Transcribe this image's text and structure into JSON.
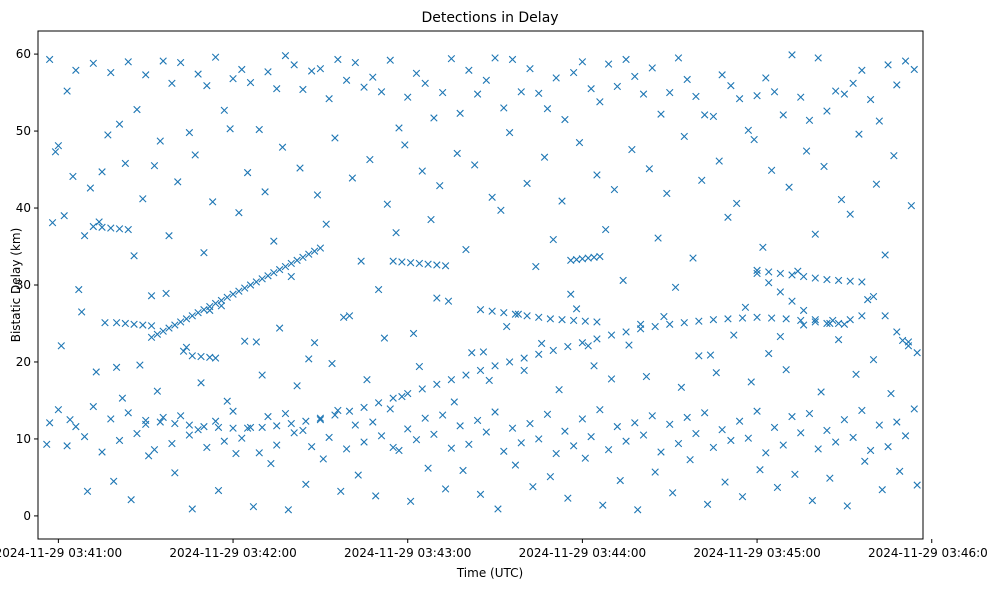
{
  "chart_data": {
    "type": "scatter",
    "title": "Detections in Delay",
    "xlabel": "Time (UTC)",
    "ylabel": "Bistatic Delay (km)",
    "x_unit": "seconds after 2024-11-29 03:40:00",
    "xlim": [
      53,
      357
    ],
    "ylim": [
      -3,
      63
    ],
    "x_ticks": [
      {
        "value": 60,
        "label": "2024-11-29 03:41:00"
      },
      {
        "value": 120,
        "label": "2024-11-29 03:42:00"
      },
      {
        "value": 180,
        "label": "2024-11-29 03:43:00"
      },
      {
        "value": 240,
        "label": "2024-11-29 03:44:00"
      },
      {
        "value": 300,
        "label": "2024-11-29 03:45:00"
      },
      {
        "value": 360,
        "label": "2024-11-29 03:46:00"
      }
    ],
    "y_ticks": [
      {
        "value": 0,
        "label": "0"
      },
      {
        "value": 10,
        "label": "10"
      },
      {
        "value": 20,
        "label": "20"
      },
      {
        "value": 30,
        "label": "30"
      },
      {
        "value": 40,
        "label": "40"
      },
      {
        "value": 50,
        "label": "50"
      },
      {
        "value": 60,
        "label": "60"
      }
    ],
    "marker": "x",
    "color": "#1f77b4",
    "series": [
      {
        "name": "detections",
        "x": [
          57,
          60,
          63,
          66,
          69,
          72,
          75,
          78,
          81,
          84,
          87,
          90,
          93,
          96,
          99,
          102,
          105,
          108,
          111,
          114,
          117,
          120,
          123,
          126,
          129,
          132,
          135,
          138,
          141,
          144,
          147,
          150,
          153,
          156,
          159,
          162,
          165,
          168,
          171,
          174,
          177,
          180,
          183,
          186,
          189,
          192,
          195,
          198,
          201,
          204,
          207,
          210,
          213,
          216,
          219,
          222,
          225,
          228,
          231,
          234,
          237,
          240,
          243,
          246,
          249,
          252,
          255,
          258,
          261,
          264,
          267,
          270,
          273,
          276,
          279,
          282,
          285,
          288,
          291,
          294,
          297,
          300,
          303,
          306,
          309,
          312,
          315,
          318,
          321,
          324,
          327,
          330,
          333,
          336,
          339,
          342,
          345,
          348,
          351,
          354,
          56,
          58,
          61,
          64,
          67,
          70,
          73,
          76,
          79,
          82,
          85,
          88,
          91,
          94,
          97,
          100,
          103,
          106,
          109,
          112,
          115,
          118,
          121,
          124,
          127,
          130,
          133,
          136,
          139,
          142,
          145,
          148,
          151,
          154,
          157,
          160,
          163,
          166,
          169,
          172,
          175,
          178,
          181,
          184,
          187,
          190,
          193,
          196,
          199,
          202,
          205,
          208,
          211,
          214,
          217,
          220,
          223,
          226,
          229,
          232,
          235,
          238,
          241,
          244,
          247,
          250,
          253,
          256,
          259,
          262,
          265,
          268,
          271,
          274,
          277,
          280,
          283,
          286,
          289,
          292,
          295,
          298,
          301,
          304,
          307,
          310,
          313,
          316,
          319,
          322,
          325,
          328,
          331,
          334,
          337,
          340,
          343,
          346,
          349,
          352,
          355,
          92,
          94,
          96,
          98,
          100,
          102,
          104,
          106,
          108,
          110,
          112,
          114,
          116,
          118,
          120,
          122,
          124,
          126,
          128,
          130,
          132,
          134,
          136,
          138,
          140,
          142,
          144,
          146,
          148,
          150,
          90,
          95,
          100,
          105,
          110,
          115,
          120,
          125,
          130,
          135,
          140,
          145,
          150,
          155,
          160,
          165,
          170,
          175,
          180,
          185,
          190,
          195,
          200,
          205,
          210,
          215,
          220,
          225,
          230,
          235,
          240,
          245,
          250,
          255,
          260,
          265,
          270,
          275,
          280,
          285,
          290,
          295,
          300,
          305,
          310,
          315,
          320,
          325,
          330,
          300,
          304,
          308,
          312,
          316,
          320,
          324,
          328,
          332,
          336,
          340,
          344,
          348,
          352,
          355,
          300,
          304,
          308,
          312,
          316,
          320,
          324,
          328,
          332,
          336,
          205,
          209,
          213,
          217,
          221,
          225,
          229,
          233,
          237,
          241,
          245,
          175,
          178,
          181,
          184,
          187,
          190,
          193,
          236,
          238,
          240,
          242,
          244,
          246,
          72,
          75,
          78,
          81,
          84,
          106,
          109,
          112,
          114,
          80,
          83,
          86,
          89,
          92,
          57,
          60,
          63,
          66,
          69,
          72,
          75,
          78,
          81,
          84,
          87,
          90,
          93,
          96,
          99,
          102,
          105,
          108,
          111,
          114,
          117,
          120,
          123,
          126,
          129,
          132,
          135,
          138,
          141,
          144,
          147,
          150,
          153,
          156,
          159,
          162,
          165,
          168,
          171,
          174,
          177,
          180,
          183,
          186,
          189,
          192,
          195,
          198,
          201,
          204,
          207,
          210,
          213,
          216,
          219,
          222,
          225,
          228,
          231,
          234,
          237,
          240,
          243,
          246,
          249,
          252,
          255,
          258,
          261,
          264,
          267,
          270,
          273,
          276,
          279,
          282,
          285,
          288,
          291,
          294,
          297,
          300,
          303,
          306,
          309,
          312,
          315,
          318,
          321,
          324,
          327,
          330,
          333,
          336,
          339,
          342,
          345,
          348,
          351,
          354,
          62,
          68,
          74,
          80,
          86,
          92,
          98,
          104,
          110,
          116,
          122,
          128,
          134,
          140,
          146,
          152,
          158,
          164,
          170,
          176,
          182,
          188,
          194,
          200,
          206,
          212,
          218,
          224,
          230,
          236,
          242,
          248,
          254,
          260,
          266,
          272,
          278,
          284,
          290,
          296,
          302,
          308,
          314,
          320,
          326,
          332,
          338,
          344,
          350,
          59,
          65,
          71,
          77,
          83,
          89,
          95,
          101,
          107,
          113,
          119,
          125,
          131,
          137,
          143,
          149,
          155,
          161,
          167,
          173,
          179,
          185,
          191,
          197,
          203,
          209,
          215,
          221,
          227,
          233,
          239,
          245,
          251,
          257,
          263,
          269,
          275,
          281,
          287,
          293,
          299,
          305,
          311,
          317,
          323,
          329,
          335,
          341,
          347,
          353
        ],
        "y": [
          59.3,
          48.1,
          55.2,
          57.9,
          36.4,
          58.8,
          44.7,
          57.6,
          50.9,
          59.0,
          52.8,
          57.3,
          45.5,
          59.1,
          56.2,
          58.9,
          49.8,
          57.4,
          55.9,
          59.6,
          52.7,
          56.8,
          58.0,
          56.3,
          50.2,
          57.7,
          55.5,
          59.8,
          58.6,
          55.4,
          57.8,
          58.1,
          54.2,
          59.3,
          56.6,
          58.9,
          55.7,
          57.0,
          55.1,
          59.2,
          50.4,
          54.4,
          57.5,
          56.2,
          51.7,
          55.0,
          59.4,
          52.3,
          57.9,
          54.8,
          56.6,
          59.5,
          53.0,
          59.3,
          55.1,
          58.1,
          54.9,
          52.9,
          56.9,
          51.5,
          57.6,
          59.0,
          55.5,
          53.8,
          58.7,
          55.8,
          59.3,
          57.1,
          54.8,
          58.2,
          52.2,
          55.0,
          59.5,
          56.7,
          54.5,
          52.1,
          51.9,
          57.3,
          55.9,
          54.2,
          50.1,
          54.6,
          56.9,
          55.1,
          52.1,
          59.9,
          54.4,
          51.4,
          59.5,
          52.6,
          55.2,
          54.8,
          56.2,
          57.9,
          54.1,
          51.3,
          58.6,
          56.0,
          59.1,
          58.0,
          9.3,
          38.1,
          22.1,
          12.5,
          29.4,
          3.2,
          18.7,
          25.1,
          4.5,
          15.3,
          2.1,
          19.6,
          7.8,
          16.2,
          28.9,
          5.6,
          21.4,
          0.9,
          17.3,
          26.7,
          3.3,
          14.9,
          8.1,
          22.7,
          1.2,
          18.3,
          6.8,
          24.4,
          0.8,
          16.9,
          4.1,
          22.5,
          7.4,
          19.8,
          3.2,
          26.0,
          5.3,
          17.7,
          2.6,
          23.1,
          8.9,
          15.5,
          1.9,
          19.4,
          6.2,
          28.3,
          3.5,
          14.8,
          5.9,
          21.2,
          2.8,
          17.6,
          0.9,
          24.6,
          6.6,
          18.9,
          3.8,
          22.4,
          5.1,
          16.4,
          2.3,
          26.9,
          7.5,
          19.5,
          1.4,
          17.8,
          4.6,
          22.2,
          0.8,
          18.1,
          5.7,
          25.9,
          3.0,
          16.7,
          7.3,
          20.8,
          1.5,
          18.6,
          4.4,
          23.5,
          2.5,
          17.4,
          6.0,
          21.1,
          3.7,
          19.0,
          5.4,
          24.8,
          2.0,
          16.1,
          4.9,
          22.9,
          1.3,
          18.4,
          7.1,
          20.3,
          3.4,
          15.9,
          5.8,
          22.6,
          4.0,
          23.2,
          23.6,
          24.0,
          24.4,
          24.8,
          25.2,
          25.6,
          26.0,
          26.4,
          26.8,
          27.2,
          27.6,
          28.0,
          28.4,
          28.8,
          29.2,
          29.6,
          30.0,
          30.4,
          30.8,
          31.2,
          31.6,
          32.0,
          32.4,
          32.8,
          33.2,
          33.6,
          34.0,
          34.4,
          34.8,
          12.4,
          12.2,
          12.0,
          11.8,
          11.6,
          11.5,
          11.4,
          11.4,
          11.5,
          11.7,
          12.0,
          12.3,
          12.7,
          13.1,
          13.6,
          14.1,
          14.7,
          15.3,
          15.9,
          16.5,
          17.1,
          17.7,
          18.3,
          18.9,
          19.5,
          20.0,
          20.5,
          21.0,
          21.5,
          22.0,
          22.5,
          23.0,
          23.5,
          23.9,
          24.3,
          24.6,
          24.9,
          25.1,
          25.3,
          25.5,
          25.6,
          25.7,
          25.8,
          25.7,
          25.6,
          25.4,
          25.2,
          25.0,
          24.9,
          31.9,
          31.7,
          31.5,
          31.3,
          31.1,
          30.9,
          30.7,
          30.6,
          30.5,
          30.4,
          28.5,
          26.0,
          23.9,
          22.1,
          21.2,
          31.5,
          30.3,
          29.1,
          27.9,
          26.7,
          25.5,
          25.0,
          25.0,
          25.5,
          26.0,
          26.8,
          26.6,
          26.4,
          26.2,
          26.0,
          25.8,
          25.6,
          25.5,
          25.4,
          25.3,
          25.2,
          33.1,
          33.0,
          32.9,
          32.8,
          32.7,
          32.6,
          32.5,
          33.2,
          33.3,
          33.4,
          33.5,
          33.6,
          33.7,
          37.6,
          37.5,
          37.4,
          37.3,
          37.2,
          20.8,
          20.7,
          20.6,
          20.5,
          25.1,
          25.0,
          24.9,
          24.8,
          24.7,
          12.1,
          13.8,
          9.1,
          11.6,
          10.3,
          14.2,
          8.3,
          12.6,
          9.8,
          13.4,
          10.7,
          11.9,
          8.6,
          12.8,
          9.4,
          13.0,
          10.5,
          11.2,
          8.9,
          12.3,
          9.7,
          13.6,
          10.1,
          11.5,
          8.2,
          12.9,
          9.2,
          13.3,
          10.8,
          11.1,
          9.0,
          12.5,
          10.2,
          13.7,
          8.7,
          11.8,
          9.6,
          12.2,
          10.4,
          13.9,
          8.5,
          11.3,
          9.9,
          12.7,
          10.6,
          13.1,
          8.8,
          11.7,
          9.3,
          12.4,
          10.9,
          13.5,
          8.4,
          11.4,
          9.5,
          12.0,
          10.0,
          13.2,
          8.1,
          11.0,
          9.1,
          12.6,
          10.3,
          13.8,
          8.6,
          11.6,
          9.7,
          12.1,
          10.5,
          13.0,
          8.3,
          11.9,
          9.4,
          12.8,
          10.7,
          13.4,
          8.9,
          11.2,
          9.8,
          12.3,
          10.1,
          13.6,
          8.2,
          11.5,
          9.2,
          12.9,
          10.8,
          13.3,
          8.7,
          11.1,
          9.6,
          12.5,
          10.2,
          13.7,
          8.5,
          11.8,
          9.0,
          12.2,
          10.4,
          13.9,
          39.0,
          26.5,
          38.2,
          19.3,
          33.8,
          28.6,
          36.4,
          21.9,
          34.2,
          27.3,
          39.4,
          22.6,
          35.7,
          31.1,
          20.4,
          37.9,
          25.8,
          33.1,
          29.4,
          36.8,
          23.7,
          38.5,
          27.9,
          34.6,
          21.3,
          39.7,
          26.2,
          32.4,
          35.9,
          28.8,
          22.1,
          37.2,
          30.6,
          24.9,
          36.1,
          29.7,
          33.5,
          20.9,
          38.8,
          27.1,
          34.9,
          23.3,
          31.8,
          36.6,
          25.4,
          39.2,
          28.1,
          33.9,
          22.8,
          47.3,
          44.1,
          42.6,
          49.5,
          45.8,
          41.2,
          48.7,
          43.4,
          46.9,
          40.8,
          50.3,
          44.6,
          42.1,
          47.9,
          45.2,
          41.7,
          49.1,
          43.9,
          46.3,
          40.5,
          48.2,
          44.8,
          42.9,
          47.1,
          45.6,
          41.4,
          49.8,
          43.2,
          46.6,
          40.9,
          48.5,
          44.3,
          42.4,
          47.6,
          45.1,
          41.9,
          49.3,
          43.6,
          46.1,
          40.6,
          48.9,
          44.9,
          42.7,
          47.4,
          45.4,
          41.1,
          49.6,
          43.1,
          46.8,
          40.3
        ]
      }
    ]
  }
}
